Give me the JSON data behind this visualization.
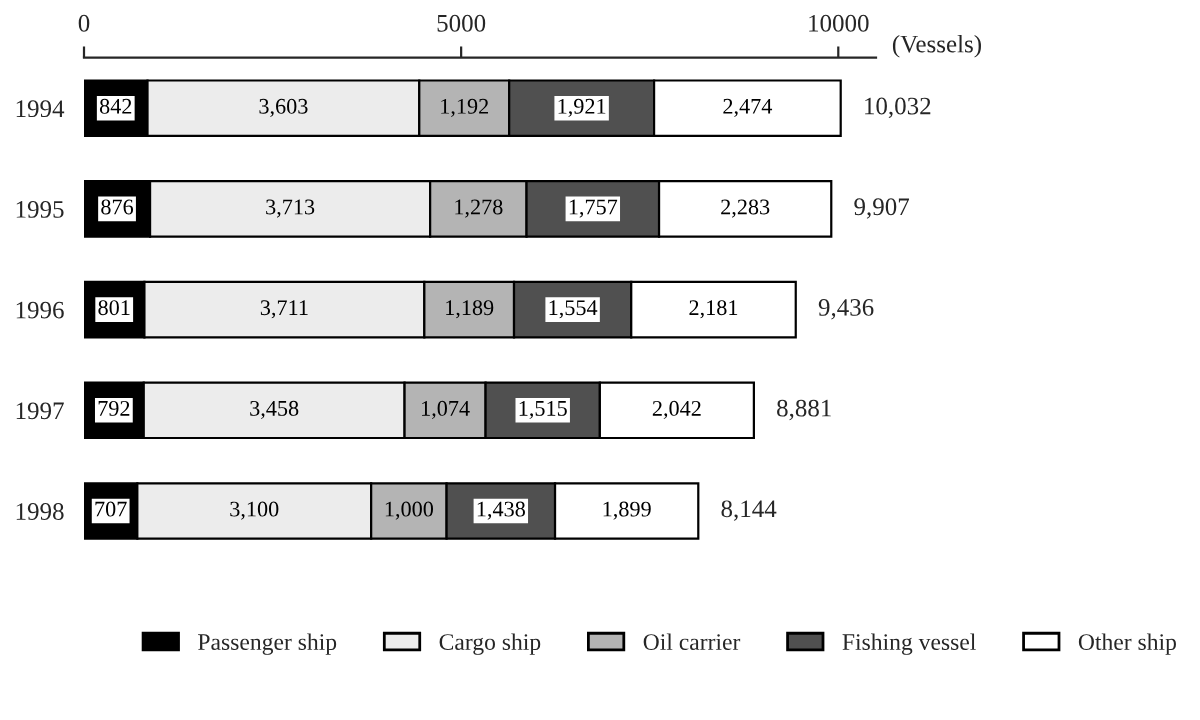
{
  "chart_data": {
    "type": "bar",
    "orientation": "horizontal",
    "stacked": true,
    "xlabel": "(Vessels)",
    "categories": [
      "1994",
      "1995",
      "1996",
      "1997",
      "1998"
    ],
    "series": [
      {
        "name": "Passenger ship",
        "color": "#000000",
        "values": [
          842,
          876,
          801,
          792,
          707
        ],
        "value_labels": [
          "842",
          "876",
          "801",
          "792",
          "707"
        ]
      },
      {
        "name": "Cargo ship",
        "color": "#ececec",
        "values": [
          3603,
          3713,
          3711,
          3458,
          3100
        ],
        "value_labels": [
          "3,603",
          "3,713",
          "3,711",
          "3,458",
          "3,100"
        ]
      },
      {
        "name": "Oil carrier",
        "color": "#b4b4b4",
        "values": [
          1192,
          1278,
          1189,
          1074,
          1000
        ],
        "value_labels": [
          "1,192",
          "1,278",
          "1,189",
          "1,074",
          "1,000"
        ]
      },
      {
        "name": "Fishing vessel",
        "color": "#505050",
        "values": [
          1921,
          1757,
          1554,
          1515,
          1438
        ],
        "value_labels": [
          "1,921",
          "1,757",
          "1,554",
          "1,515",
          "1,438"
        ]
      },
      {
        "name": "Other ship",
        "color": "#ffffff",
        "values": [
          2474,
          2283,
          2181,
          2042,
          1899
        ],
        "value_labels": [
          "2,474",
          "2,283",
          "2,181",
          "2,042",
          "1,899"
        ]
      }
    ],
    "totals": [
      "10,032",
      "9,907",
      "9,436",
      "8,881",
      "8,144"
    ],
    "xlim": [
      0,
      10500
    ],
    "xticks": [
      0,
      5000,
      10000
    ],
    "legend": "bottom",
    "grid": false
  }
}
